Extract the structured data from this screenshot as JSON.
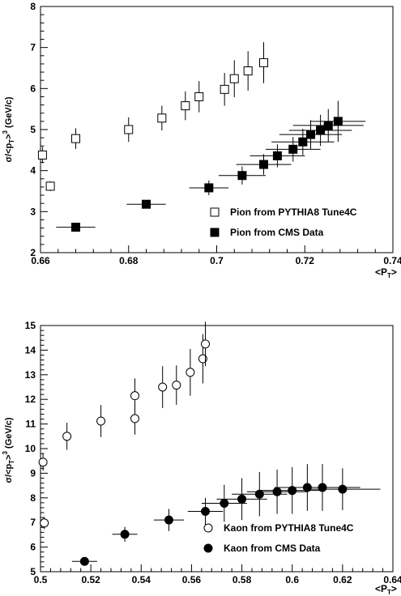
{
  "chart_data": [
    {
      "type": "scatter",
      "x_unit_label": "<P_T>",
      "xlabel_main": "<P",
      "xlabel_sub": "T",
      "xlabel_tail": ">",
      "ylabel_pre": "σ/<p",
      "ylabel_sub": "T",
      "ylabel_post": ">",
      "ylabel_sup": "3",
      "ylabel_unit": " (GeV/c)",
      "xlim": [
        0.65,
        0.74
      ],
      "ylim": [
        2,
        8
      ],
      "xticks": [
        "0.66",
        "0.68",
        "0.7",
        "0.72",
        "0.74"
      ],
      "yticks": [
        "2",
        "3",
        "4",
        "5",
        "6",
        "7",
        "8"
      ],
      "series": [
        {
          "name": "Pion from PYTHIA8 Tune4C",
          "marker": "open-square",
          "points": [
            {
              "x": 0.6505,
              "y": 4.38,
              "ex": 0.0,
              "ey": 0.2
            },
            {
              "x": 0.6525,
              "y": 3.62,
              "ex": 0.0,
              "ey": 0.12
            },
            {
              "x": 0.659,
              "y": 4.78,
              "ex": 0.0,
              "ey": 0.25
            },
            {
              "x": 0.6725,
              "y": 5.0,
              "ex": 0.0,
              "ey": 0.3
            },
            {
              "x": 0.681,
              "y": 5.28,
              "ex": 0.0,
              "ey": 0.3
            },
            {
              "x": 0.687,
              "y": 5.58,
              "ex": 0.0,
              "ey": 0.35
            },
            {
              "x": 0.6905,
              "y": 5.8,
              "ex": 0.0,
              "ey": 0.38
            },
            {
              "x": 0.697,
              "y": 5.98,
              "ex": 0.0,
              "ey": 0.4
            },
            {
              "x": 0.6995,
              "y": 6.24,
              "ex": 0.0,
              "ey": 0.45
            },
            {
              "x": 0.703,
              "y": 6.43,
              "ex": 0.0,
              "ey": 0.48
            },
            {
              "x": 0.707,
              "y": 6.63,
              "ex": 0.0,
              "ey": 0.5
            }
          ]
        },
        {
          "name": "Pion from CMS Data",
          "marker": "filled-square",
          "points": [
            {
              "x": 0.659,
              "y": 2.62,
              "ex": 0.005,
              "ey": 0.05
            },
            {
              "x": 0.677,
              "y": 3.18,
              "ex": 0.005,
              "ey": 0.1
            },
            {
              "x": 0.693,
              "y": 3.58,
              "ex": 0.005,
              "ey": 0.18
            },
            {
              "x": 0.7015,
              "y": 3.88,
              "ex": 0.006,
              "ey": 0.22
            },
            {
              "x": 0.707,
              "y": 4.15,
              "ex": 0.007,
              "ey": 0.25
            },
            {
              "x": 0.7105,
              "y": 4.36,
              "ex": 0.007,
              "ey": 0.28
            },
            {
              "x": 0.7145,
              "y": 4.52,
              "ex": 0.007,
              "ey": 0.3
            },
            {
              "x": 0.717,
              "y": 4.7,
              "ex": 0.008,
              "ey": 0.32
            },
            {
              "x": 0.719,
              "y": 4.88,
              "ex": 0.008,
              "ey": 0.35
            },
            {
              "x": 0.7215,
              "y": 4.98,
              "ex": 0.008,
              "ey": 0.38
            },
            {
              "x": 0.7235,
              "y": 5.1,
              "ex": 0.009,
              "ey": 0.4
            },
            {
              "x": 0.726,
              "y": 5.2,
              "ex": 0.007,
              "ey": 0.5
            }
          ]
        }
      ]
    },
    {
      "type": "scatter",
      "x_unit_label": "<P_T>",
      "xlabel_main": "<P",
      "xlabel_sub": "T",
      "xlabel_tail": ">",
      "ylabel_pre": "σ/<p",
      "ylabel_sub": "T",
      "ylabel_post": ">",
      "ylabel_sup": "3",
      "ylabel_unit": " (GeV/c)",
      "xlim": [
        0.5,
        0.64
      ],
      "ylim": [
        5,
        15
      ],
      "xticks": [
        "0.5",
        "0.52",
        "0.54",
        "0.56",
        "0.58",
        "0.6",
        "0.62",
        "0.64"
      ],
      "yticks": [
        "5",
        "6",
        "7",
        "8",
        "9",
        "10",
        "11",
        "12",
        "13",
        "14",
        "15"
      ],
      "series": [
        {
          "name": "Kaon from PYTHIA8 Tune4C",
          "marker": "open-circle",
          "points": [
            {
              "x": 0.501,
              "y": 9.45,
              "ex": 0.0,
              "ey": 0.35
            },
            {
              "x": 0.5015,
              "y": 6.98,
              "ex": 0.0,
              "ey": 0.25
            },
            {
              "x": 0.5105,
              "y": 10.5,
              "ex": 0.0,
              "ey": 0.55
            },
            {
              "x": 0.524,
              "y": 11.12,
              "ex": 0.0,
              "ey": 0.65
            },
            {
              "x": 0.5375,
              "y": 12.15,
              "ex": 0.0,
              "ey": 0.7
            },
            {
              "x": 0.5375,
              "y": 11.22,
              "ex": 0.0,
              "ey": 0.65
            },
            {
              "x": 0.5485,
              "y": 12.5,
              "ex": 0.0,
              "ey": 0.85
            },
            {
              "x": 0.554,
              "y": 12.58,
              "ex": 0.0,
              "ey": 0.8
            },
            {
              "x": 0.5595,
              "y": 13.1,
              "ex": 0.0,
              "ey": 0.95
            },
            {
              "x": 0.5645,
              "y": 13.65,
              "ex": 0.0,
              "ey": 1.0
            },
            {
              "x": 0.5655,
              "y": 14.25,
              "ex": 0.0,
              "ey": 0.9
            }
          ]
        },
        {
          "name": "Kaon from CMS Data",
          "marker": "filled-circle",
          "points": [
            {
              "x": 0.5175,
              "y": 5.42,
              "ex": 0.005,
              "ey": 0.1
            },
            {
              "x": 0.5335,
              "y": 6.52,
              "ex": 0.005,
              "ey": 0.3
            },
            {
              "x": 0.551,
              "y": 7.1,
              "ex": 0.006,
              "ey": 0.45
            },
            {
              "x": 0.5655,
              "y": 7.45,
              "ex": 0.007,
              "ey": 0.55
            },
            {
              "x": 0.573,
              "y": 7.78,
              "ex": 0.009,
              "ey": 0.75
            },
            {
              "x": 0.58,
              "y": 7.95,
              "ex": 0.01,
              "ey": 0.85
            },
            {
              "x": 0.587,
              "y": 8.15,
              "ex": 0.011,
              "ey": 0.9
            },
            {
              "x": 0.594,
              "y": 8.25,
              "ex": 0.012,
              "ey": 0.9
            },
            {
              "x": 0.6,
              "y": 8.3,
              "ex": 0.013,
              "ey": 0.95
            },
            {
              "x": 0.606,
              "y": 8.42,
              "ex": 0.013,
              "ey": 0.95
            },
            {
              "x": 0.612,
              "y": 8.42,
              "ex": 0.015,
              "ey": 0.95
            },
            {
              "x": 0.62,
              "y": 8.35,
              "ex": 0.015,
              "ey": 0.85
            }
          ]
        }
      ]
    }
  ]
}
